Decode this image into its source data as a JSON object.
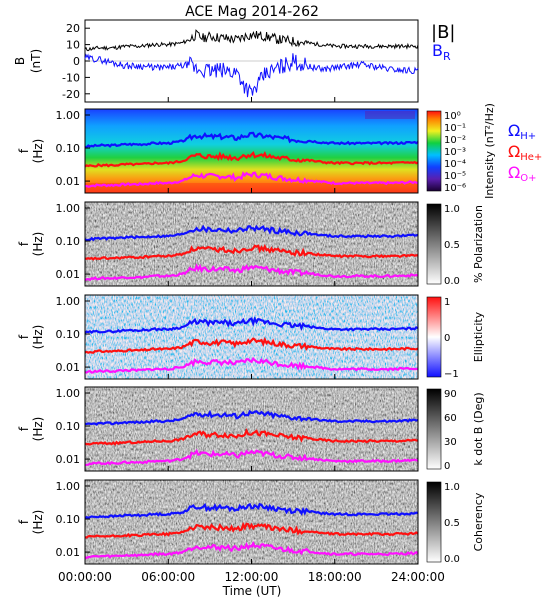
{
  "figure": {
    "title": "ACE Mag 2014-262",
    "xlabel": "Time (UT)",
    "xticks": [
      "00:00:00",
      "06:00:00",
      "12:00:00",
      "18:00:00",
      "24:00:00"
    ],
    "colors": {
      "B_total": "#000000",
      "B_R": "#1010ff",
      "H_plus": "#1010ff",
      "He_plus": "#ff1010",
      "O_plus": "#ff10ff"
    }
  },
  "chart_data": [
    {
      "type": "line",
      "title": "",
      "ylabel": "B\n(nT)",
      "ylim": [
        -25,
        25
      ],
      "yticks": [
        "20",
        "10",
        "0",
        "-10",
        "-20"
      ],
      "xlim": [
        0,
        24
      ],
      "legend": [
        "|B|",
        "B_R"
      ],
      "series": [
        {
          "name": "|B|",
          "x": [
            0,
            1,
            2,
            3,
            4,
            5,
            6,
            7,
            7.5,
            8,
            8.5,
            9,
            10,
            11,
            11.5,
            12,
            13,
            14,
            15,
            16,
            17,
            18,
            20,
            22,
            24
          ],
          "values": [
            7,
            8,
            8,
            9,
            9,
            10,
            10,
            11,
            13,
            16,
            14,
            15,
            14,
            13,
            15,
            16,
            15,
            13,
            12,
            11,
            10,
            9,
            9,
            9,
            9
          ]
        },
        {
          "name": "B_R",
          "x": [
            0,
            1,
            2,
            3,
            4,
            5,
            6,
            7,
            7.5,
            8,
            9,
            10,
            11,
            11.5,
            12,
            12.5,
            13,
            14,
            15,
            16,
            17,
            18,
            20,
            22,
            24
          ],
          "values": [
            2,
            1,
            -1,
            -3,
            -3,
            -4,
            -4,
            -3,
            -2,
            -5,
            -6,
            -6,
            -7,
            -15,
            -20,
            -14,
            -8,
            -4,
            0,
            -3,
            -5,
            -4,
            -2,
            -5,
            -6
          ]
        }
      ]
    },
    {
      "type": "heatmap",
      "title": "",
      "ylabel": "f\n(Hz)",
      "yticks": [
        "1.00",
        "0.10",
        "0.01"
      ],
      "colorbar_label": "Intensity (nT²/Hz)",
      "colorbar_ticks": [
        "10⁰",
        "10⁻¹",
        "10⁻²",
        "10⁻³",
        "10⁻⁴",
        "10⁻⁵",
        "10⁻⁶"
      ],
      "legend": [
        "ΩH+",
        "ΩHe+",
        "ΩO+"
      ]
    },
    {
      "type": "heatmap",
      "title": "",
      "ylabel": "f\n(Hz)",
      "yticks": [
        "1.00",
        "0.10",
        "0.01"
      ],
      "colorbar_label": "% Polarization",
      "colorbar_ticks": [
        "1.0",
        "0.5",
        "0.0"
      ]
    },
    {
      "type": "heatmap",
      "title": "",
      "ylabel": "f\n(Hz)",
      "yticks": [
        "1.00",
        "0.10",
        "0.01"
      ],
      "colorbar_label": "Ellipticity",
      "colorbar_ticks": [
        "1",
        "0",
        "−1"
      ]
    },
    {
      "type": "heatmap",
      "title": "",
      "ylabel": "f\n(Hz)",
      "yticks": [
        "1.00",
        "0.10",
        "0.01"
      ],
      "colorbar_label": "k dot B (Deg)",
      "colorbar_ticks": [
        "90",
        "60",
        "30",
        "0"
      ]
    },
    {
      "type": "heatmap",
      "title": "",
      "ylabel": "f\n(Hz)",
      "yticks": [
        "1.00",
        "0.10",
        "0.01"
      ],
      "colorbar_label": "Coherency",
      "colorbar_ticks": [
        "1.0",
        "0.5",
        "0.0"
      ]
    }
  ],
  "gyrofrequency_lines": {
    "x": [
      0,
      1,
      2,
      3,
      4,
      5,
      6,
      7,
      7.5,
      8,
      9,
      10,
      11,
      11.5,
      12,
      13,
      14,
      15,
      16,
      17,
      18,
      20,
      22,
      24
    ],
    "H_plus": [
      0.11,
      0.12,
      0.12,
      0.13,
      0.13,
      0.14,
      0.14,
      0.16,
      0.2,
      0.24,
      0.22,
      0.22,
      0.2,
      0.24,
      0.25,
      0.23,
      0.2,
      0.18,
      0.17,
      0.15,
      0.14,
      0.14,
      0.14,
      0.15
    ],
    "He_plus": [
      0.028,
      0.03,
      0.03,
      0.032,
      0.032,
      0.035,
      0.035,
      0.04,
      0.05,
      0.06,
      0.055,
      0.055,
      0.05,
      0.06,
      0.063,
      0.058,
      0.05,
      0.045,
      0.043,
      0.038,
      0.035,
      0.035,
      0.035,
      0.037
    ],
    "O_plus": [
      0.007,
      0.0075,
      0.0075,
      0.008,
      0.008,
      0.0087,
      0.0087,
      0.01,
      0.0125,
      0.015,
      0.014,
      0.014,
      0.0125,
      0.015,
      0.016,
      0.0145,
      0.0125,
      0.0112,
      0.0107,
      0.0095,
      0.0087,
      0.0087,
      0.0087,
      0.0093
    ]
  }
}
